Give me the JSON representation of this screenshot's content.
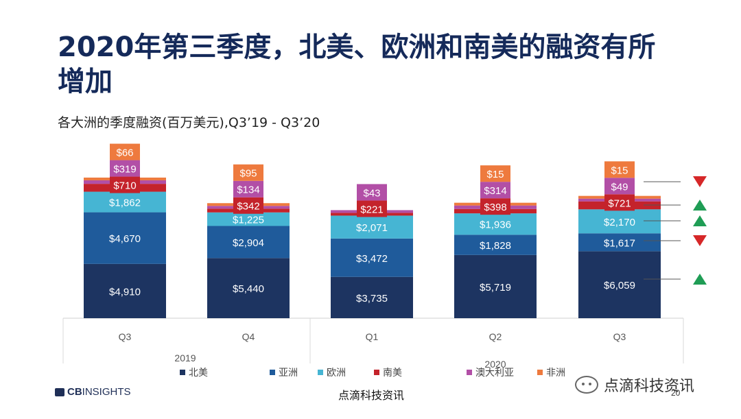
{
  "title": "2020年第三季度，北美、欧洲和南美的融资有所增加",
  "subtitle": "各大洲的季度融资(百万美元),Q3’19 - Q3’20",
  "colors": {
    "北美": "#1d3461",
    "亚洲": "#1f5b9b",
    "欧洲": "#46b5d3",
    "南美": "#c4232b",
    "澳大利亚": "#b24fa6",
    "非洲": "#ee7a3e",
    "up": "#1f9d55",
    "down": "#d62728"
  },
  "chart_data": {
    "type": "bar",
    "stacked": true,
    "categories": [
      "Q3",
      "Q4",
      "Q1",
      "Q2",
      "Q3"
    ],
    "years": [
      {
        "label": "2019",
        "quarters": [
          0,
          1
        ]
      },
      {
        "label": "2020",
        "quarters": [
          2,
          3,
          4
        ]
      }
    ],
    "series": [
      {
        "name": "北美",
        "values": [
          4910,
          5440,
          3735,
          5719,
          6059
        ],
        "labels": [
          "$4,910",
          "$5,440",
          "$3,735",
          "$5,719",
          "$6,059"
        ]
      },
      {
        "name": "亚洲",
        "values": [
          4670,
          2904,
          3472,
          1828,
          1617
        ],
        "labels": [
          "$4,670",
          "$2,904",
          "$3,472",
          "$1,828",
          "$1,617"
        ]
      },
      {
        "name": "欧洲",
        "values": [
          1862,
          1225,
          2071,
          1936,
          2170
        ],
        "labels": [
          "$1,862",
          "$1,225",
          "$2,071",
          "$1,936",
          "$2,170"
        ]
      },
      {
        "name": "南美",
        "values": [
          710,
          342,
          221,
          398,
          721
        ],
        "labels": [
          "$710",
          "$342",
          "$221",
          "$398",
          "$721"
        ]
      },
      {
        "name": "澳大利亚",
        "values": [
          319,
          134,
          43,
          314,
          49
        ],
        "labels": [
          "$319",
          "$134",
          "$43",
          "$314",
          "$49"
        ]
      },
      {
        "name": "非洲",
        "values": [
          66,
          95,
          0,
          15,
          15
        ],
        "labels": [
          "$66",
          "$95",
          "",
          "$15",
          "$15"
        ]
      }
    ],
    "legend": [
      "北美",
      "亚洲",
      "欧洲",
      "南美",
      "澳大利亚",
      "非洲"
    ],
    "legend_position": "bottom",
    "trend_arrows": [
      {
        "series": "澳大利亚",
        "direction": "down"
      },
      {
        "series": "南美",
        "direction": "up"
      },
      {
        "series": "欧洲",
        "direction": "up"
      },
      {
        "series": "亚洲",
        "direction": "down"
      },
      {
        "series": "北美",
        "direction": "up"
      }
    ]
  },
  "footer": {
    "logo_cb": "CB",
    "logo_rest": "INSIGHTS",
    "center_text": "点滴科技资讯",
    "page_number": "20"
  },
  "watermark": {
    "text": "点滴科技资讯"
  }
}
